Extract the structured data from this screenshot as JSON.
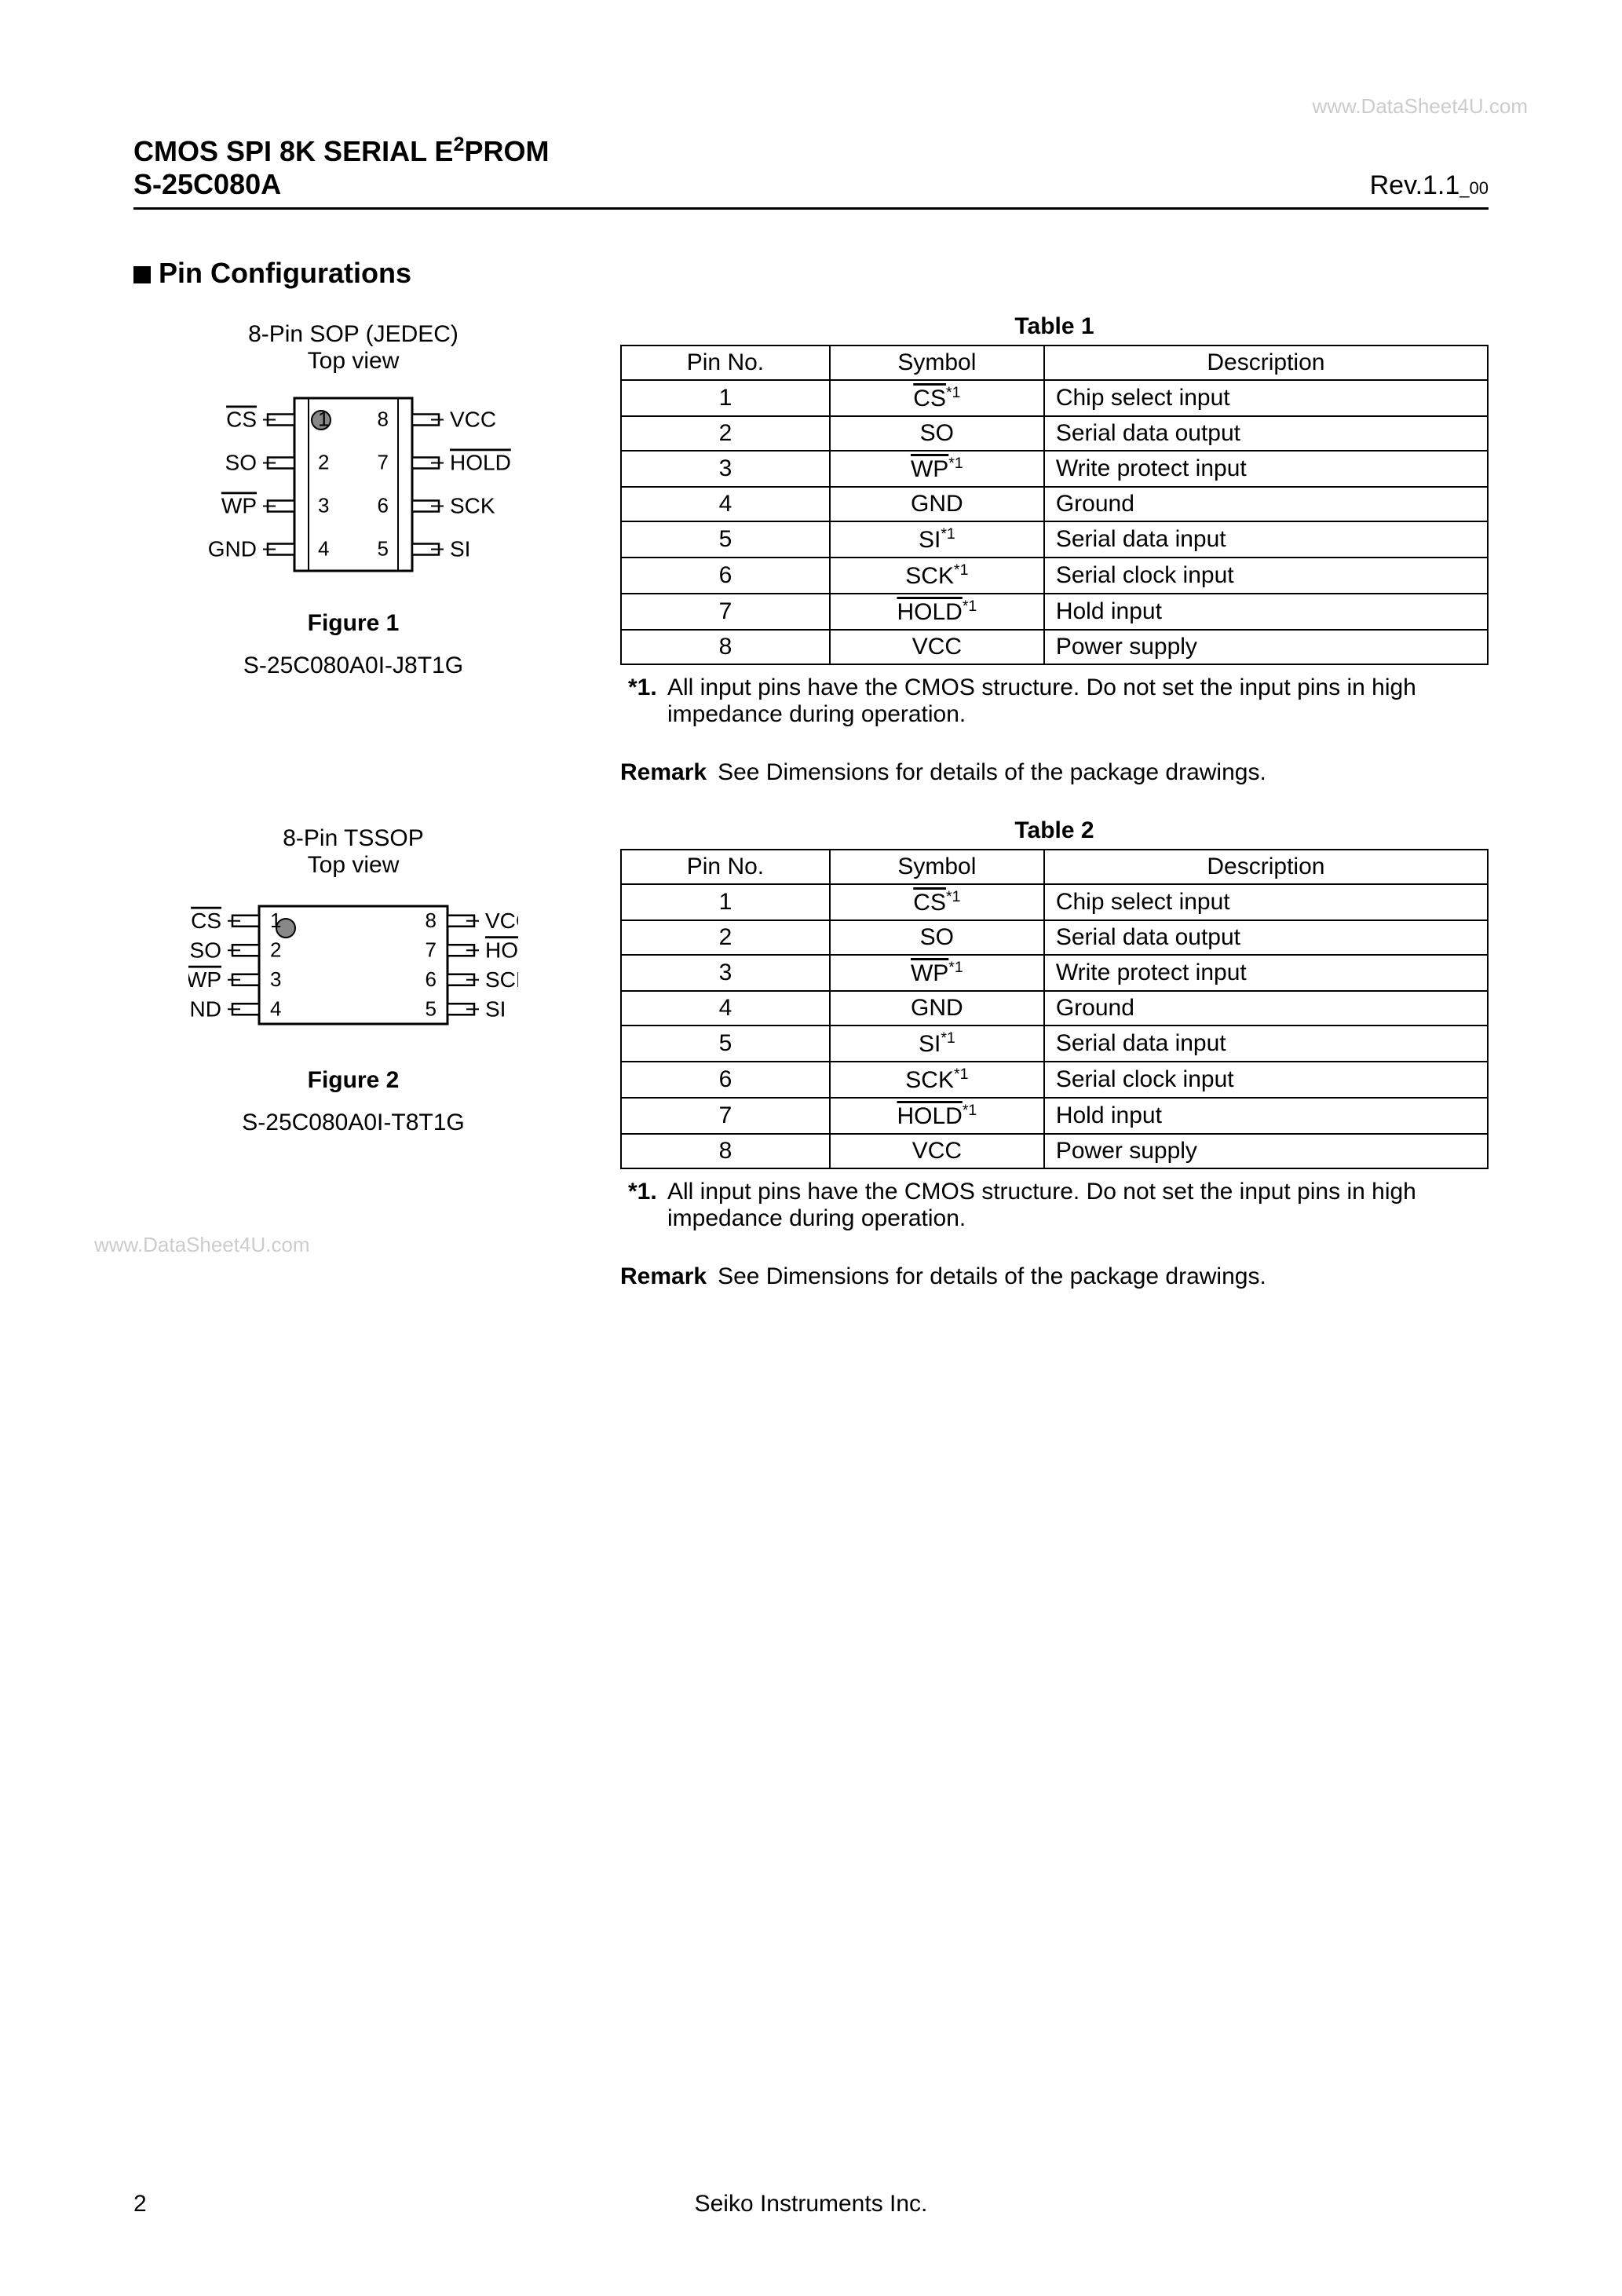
{
  "watermark": "www.DataSheet4U.com",
  "header": {
    "title_line1_pre": "CMOS SPI 8K SERIAL E",
    "title_line1_sup": "2",
    "title_line1_post": "PROM",
    "part": "S-25C080A",
    "rev_main": "Rev.1.1",
    "rev_sub": "_00"
  },
  "section_title": "Pin Configurations",
  "packages": [
    {
      "pkg_title": "8-Pin SOP (JEDEC)",
      "pkg_sub": "Top view",
      "fig_label": "Figure 1",
      "part_num": "S-25C080A0I-J8T1G",
      "chip": {
        "wide": false
      },
      "table_title": "Table 1"
    },
    {
      "pkg_title": "8-Pin TSSOP",
      "pkg_sub": "Top view",
      "fig_label": "Figure 2",
      "part_num": "S-25C080A0I-T8T1G",
      "chip": {
        "wide": true
      },
      "table_title": "Table 2"
    }
  ],
  "pin_labels_left": [
    "CS",
    "SO",
    "WP",
    "GND"
  ],
  "pin_labels_right": [
    "VCC",
    "HOLD",
    "SCK",
    "SI"
  ],
  "pin_overline_left": [
    true,
    false,
    true,
    false
  ],
  "pin_overline_right": [
    false,
    true,
    false,
    false
  ],
  "table": {
    "headers": [
      "Pin No.",
      "Symbol",
      "Description"
    ],
    "rows": [
      {
        "no": "1",
        "sym": "CS",
        "ov": true,
        "star": true,
        "desc": "Chip select input"
      },
      {
        "no": "2",
        "sym": "SO",
        "ov": false,
        "star": false,
        "desc": "Serial data output"
      },
      {
        "no": "3",
        "sym": "WP",
        "ov": true,
        "star": true,
        "desc": "Write protect input"
      },
      {
        "no": "4",
        "sym": "GND",
        "ov": false,
        "star": false,
        "desc": "Ground"
      },
      {
        "no": "5",
        "sym": "SI",
        "ov": false,
        "star": true,
        "desc": "Serial data input"
      },
      {
        "no": "6",
        "sym": "SCK",
        "ov": false,
        "star": true,
        "desc": "Serial clock input"
      },
      {
        "no": "7",
        "sym": "HOLD",
        "ov": true,
        "star": true,
        "desc": "Hold input"
      },
      {
        "no": "8",
        "sym": "VCC",
        "ov": false,
        "star": false,
        "desc": "Power supply"
      }
    ]
  },
  "footnote": {
    "label": "*1.",
    "text": "All input pins have the CMOS structure. Do not set the input pins in high impedance during operation."
  },
  "remark": {
    "label": "Remark",
    "text": "See Dimensions for details of the package drawings."
  },
  "footer": {
    "page": "2",
    "company": "Seiko Instruments Inc."
  }
}
